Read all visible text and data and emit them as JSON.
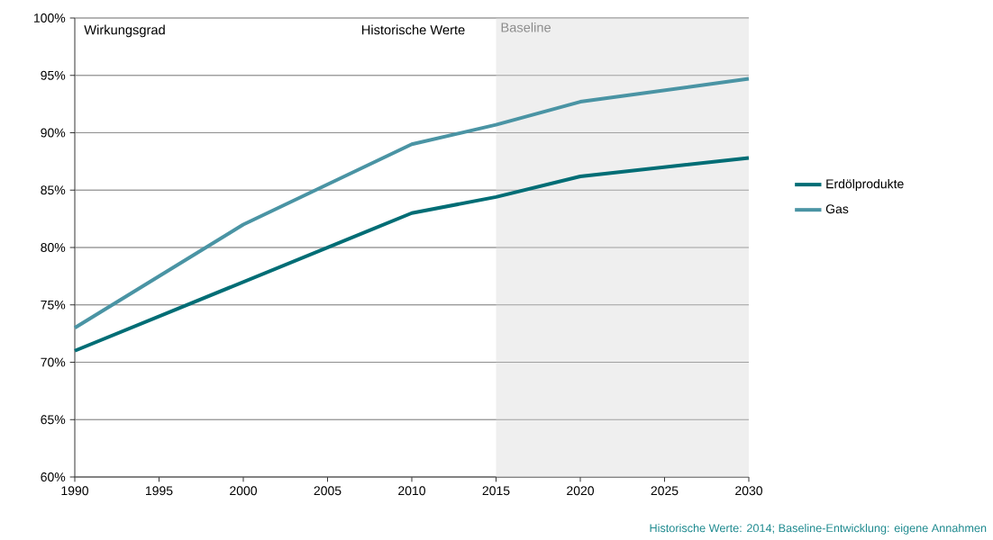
{
  "chart_data": {
    "type": "line",
    "ylabel": "Wirkungsgrad",
    "annotations": [
      "Historische Werte",
      "Historische Werte: 2014; Baseline-Entwicklung: eigene Annahmen"
    ],
    "x": [
      1990,
      2000,
      2010,
      2015,
      2020,
      2030
    ],
    "series": [
      {
        "name": "Erdölprodukte",
        "color": "#006d75",
        "values": [
          71,
          77,
          83,
          84.4,
          86.2,
          87.8
        ]
      },
      {
        "name": "Gas",
        "color": "#4a94a4",
        "values": [
          73,
          82,
          89,
          90.7,
          92.7,
          94.7
        ]
      }
    ],
    "bands": [
      {
        "axis": "x",
        "from": 2015,
        "to": 2030,
        "label": "Baseline",
        "color": "#efefef"
      }
    ],
    "xlim": [
      1990,
      2030
    ],
    "xticks": [
      1990,
      1995,
      2000,
      2005,
      2010,
      2015,
      2020,
      2025,
      2030
    ],
    "ylim": [
      60,
      100
    ],
    "yticks": [
      {
        "value": 60,
        "label": "60%"
      },
      {
        "value": 65,
        "label": "65%"
      },
      {
        "value": 70,
        "label": "70%"
      },
      {
        "value": 75,
        "label": "75%"
      },
      {
        "value": 80,
        "label": "80%"
      },
      {
        "value": 85,
        "label": "85%"
      },
      {
        "value": 90,
        "label": "90%"
      },
      {
        "value": 95,
        "label": "95%"
      },
      {
        "value": 100,
        "label": "100%"
      }
    ],
    "grid": "y",
    "legend": "right",
    "line_style": "solid",
    "marker": "none"
  }
}
